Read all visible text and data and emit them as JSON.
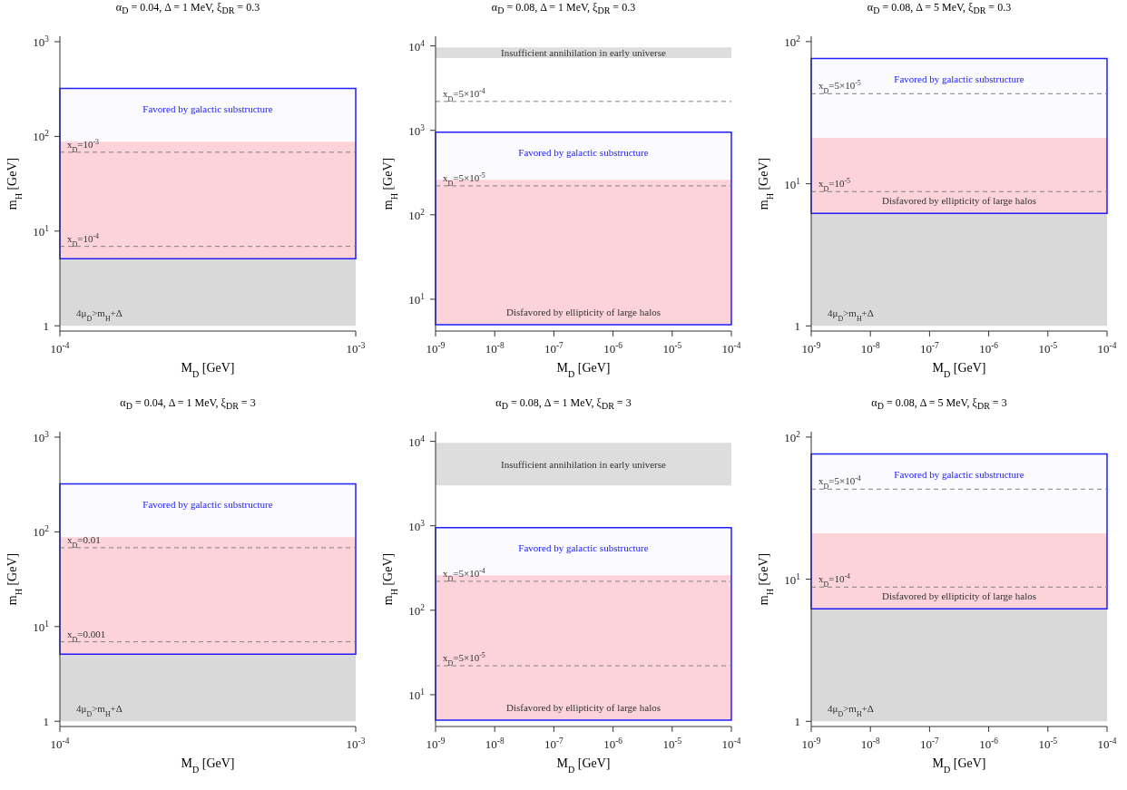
{
  "chart_data": [
    {
      "type": "area",
      "title": "α$_{D}$ = 0.04, Δ = 1 MeV, ξ$_{DR}$ = 0.3",
      "xlabel": "M$_{D}$   [GeV]",
      "ylabel": "m$_{H}$ [GeV]",
      "log": "xy",
      "xlim": [
        0.0001,
        0.001
      ],
      "ylim": [
        0.88,
        1140
      ],
      "xticks": [
        {
          "value": 0.0001,
          "label": "10$^{-4}$"
        },
        {
          "value": 0.001,
          "label": "10$^{-3}$"
        }
      ],
      "yticks": [
        {
          "value": 1,
          "label": "1"
        },
        {
          "value": 10,
          "label": "10$^{1}$"
        },
        {
          "value": 100,
          "label": "10$^{2}$"
        },
        {
          "value": 1000,
          "label": "10$^{3}$"
        }
      ],
      "bands": [
        {
          "axis": "y",
          "from": 1,
          "to": 5.1,
          "label": "4μ$_{D}$>m$_{H}$+Δ",
          "color": "#d9d9d9"
        },
        {
          "axis": "y",
          "from": 5.1,
          "to": 88,
          "color": "#ffd7d9"
        },
        {
          "axis": "y",
          "from": 5.1,
          "to": 320,
          "label": "Favored by galactic substructure",
          "color": "#2020ff"
        }
      ],
      "ref_lines": [
        {
          "axis": "y",
          "value": 68,
          "color": "#808080",
          "line_style": "dashed"
        },
        {
          "axis": "y",
          "value": 6.9,
          "color": "#808080",
          "line_style": "dashed"
        }
      ],
      "annotations": [
        {
          "text": "x$_{D}$=10$^{-3}$",
          "y": 68
        },
        {
          "text": "x$_{D}$=10$^{-4}$",
          "y": 6.9
        }
      ]
    },
    {
      "type": "area",
      "title": "α$_{D}$ = 0.08, Δ = 1 MeV, ξ$_{DR}$ = 0.3",
      "xlabel": "M$_{D}$   [GeV]",
      "ylabel": "m$_{H}$ [GeV]",
      "log": "xy",
      "xlim": [
        1e-09,
        0.0001
      ],
      "ylim": [
        4.2,
        13000
      ],
      "xticks": [
        {
          "value": 1e-09,
          "label": "10$^{-9}$"
        },
        {
          "value": 1e-08,
          "label": "10$^{-8}$"
        },
        {
          "value": 1e-07,
          "label": "10$^{-7}$"
        },
        {
          "value": 1e-06,
          "label": "10$^{-6}$"
        },
        {
          "value": 1e-05,
          "label": "10$^{-5}$"
        },
        {
          "value": 0.0001,
          "label": "10$^{-4}$"
        }
      ],
      "yticks": [
        {
          "value": 10,
          "label": "10$^{1}$"
        },
        {
          "value": 100,
          "label": "10$^{2}$"
        },
        {
          "value": 1000,
          "label": "10$^{3}$"
        },
        {
          "value": 10000,
          "label": "10$^{4}$"
        }
      ],
      "bands": [
        {
          "axis": "y",
          "from": 5,
          "to": 260,
          "label": "Disfavored by ellipticity of large halos",
          "color": "#ffd7d9"
        },
        {
          "axis": "y",
          "from": 5,
          "to": 950,
          "label": "Favored by galactic substructure",
          "color": "#2020ff"
        },
        {
          "axis": "y",
          "from": 7200,
          "to": 9600,
          "label": "Insufficient annihilation in early universe",
          "color": "#dddddd"
        }
      ],
      "ref_lines": [
        {
          "axis": "y",
          "value": 2200,
          "color": "#808080",
          "line_style": "dashed"
        },
        {
          "axis": "y",
          "value": 220,
          "color": "#808080",
          "line_style": "dashed"
        }
      ],
      "annotations": [
        {
          "text": "x$_{D}$=5×10$^{-4}$",
          "y": 2200
        },
        {
          "text": "x$_{D}$=5×10$^{-5}$",
          "y": 220
        }
      ]
    },
    {
      "type": "area",
      "title": "α$_{D}$ = 0.08, Δ = 5 MeV, ξ$_{DR}$ = 0.3",
      "xlabel": "M$_{D}$   [GeV]",
      "ylabel": "m$_{H}$ [GeV]",
      "log": "xy",
      "xlim": [
        1e-09,
        0.0001
      ],
      "ylim": [
        0.92,
        109
      ],
      "xticks": [
        {
          "value": 1e-09,
          "label": "10$^{-9}$"
        },
        {
          "value": 1e-08,
          "label": "10$^{-8}$"
        },
        {
          "value": 1e-07,
          "label": "10$^{-7}$"
        },
        {
          "value": 1e-06,
          "label": "10$^{-6}$"
        },
        {
          "value": 1e-05,
          "label": "10$^{-5}$"
        },
        {
          "value": 0.0001,
          "label": "10$^{-4}$"
        }
      ],
      "yticks": [
        {
          "value": 1,
          "label": "1"
        },
        {
          "value": 10,
          "label": "10$^{1}$"
        },
        {
          "value": 100,
          "label": "10$^{2}$"
        }
      ],
      "bands": [
        {
          "axis": "y",
          "from": 1,
          "to": 6.2,
          "label": "4μ$_{D}$>m$_{H}$+Δ",
          "color": "#d9d9d9"
        },
        {
          "axis": "y",
          "from": 6.2,
          "to": 21,
          "label": "Disfavored by ellipticity of large halos",
          "color": "#ffd7d9"
        },
        {
          "axis": "y",
          "from": 6.2,
          "to": 76,
          "label": "Favored by galactic substructure",
          "color": "#2020ff"
        }
      ],
      "ref_lines": [
        {
          "axis": "y",
          "value": 43,
          "color": "#808080",
          "line_style": "dashed"
        },
        {
          "axis": "y",
          "value": 8.8,
          "color": "#808080",
          "line_style": "dashed"
        }
      ],
      "annotations": [
        {
          "text": "x$_{D}$=5×10$^{-5}$",
          "y": 43
        },
        {
          "text": "x$_{D}$=10$^{-5}$",
          "y": 8.8
        }
      ]
    },
    {
      "type": "area",
      "title": "α$_{D}$ = 0.04, Δ = 1 MeV, ξ$_{DR}$ = 3",
      "xlabel": "M$_{D}$   [GeV]",
      "ylabel": "m$_{H}$ [GeV]",
      "log": "xy",
      "xlim": [
        0.0001,
        0.001
      ],
      "ylim": [
        0.88,
        1140
      ],
      "xticks": [
        {
          "value": 0.0001,
          "label": "10$^{-4}$"
        },
        {
          "value": 0.001,
          "label": "10$^{-3}$"
        }
      ],
      "yticks": [
        {
          "value": 1,
          "label": "1"
        },
        {
          "value": 10,
          "label": "10$^{1}$"
        },
        {
          "value": 100,
          "label": "10$^{2}$"
        },
        {
          "value": 1000,
          "label": "10$^{3}$"
        }
      ],
      "bands": [
        {
          "axis": "y",
          "from": 1,
          "to": 5.1,
          "label": "4μ$_{D}$>m$_{H}$+Δ",
          "color": "#d9d9d9"
        },
        {
          "axis": "y",
          "from": 5.1,
          "to": 88,
          "color": "#ffd7d9"
        },
        {
          "axis": "y",
          "from": 5.1,
          "to": 320,
          "label": "Favored by galactic substructure",
          "color": "#2020ff"
        }
      ],
      "ref_lines": [
        {
          "axis": "y",
          "value": 68,
          "color": "#808080",
          "line_style": "dashed"
        },
        {
          "axis": "y",
          "value": 6.9,
          "color": "#808080",
          "line_style": "dashed"
        }
      ],
      "annotations": [
        {
          "text": "x$_{D}$=0.01",
          "y": 68
        },
        {
          "text": "x$_{D}$=0.001",
          "y": 6.9
        }
      ]
    },
    {
      "type": "area",
      "title": "α$_{D}$ = 0.08, Δ = 1 MeV, ξ$_{DR}$ = 3",
      "xlabel": "M$_{D}$   [GeV]",
      "ylabel": "m$_{H}$ [GeV]",
      "log": "xy",
      "xlim": [
        1e-09,
        0.0001
      ],
      "ylim": [
        4.2,
        13000
      ],
      "xticks": [
        {
          "value": 1e-09,
          "label": "10$^{-9}$"
        },
        {
          "value": 1e-08,
          "label": "10$^{-8}$"
        },
        {
          "value": 1e-07,
          "label": "10$^{-7}$"
        },
        {
          "value": 1e-06,
          "label": "10$^{-6}$"
        },
        {
          "value": 1e-05,
          "label": "10$^{-5}$"
        },
        {
          "value": 0.0001,
          "label": "10$^{-4}$"
        }
      ],
      "yticks": [
        {
          "value": 10,
          "label": "10$^{1}$"
        },
        {
          "value": 100,
          "label": "10$^{2}$"
        },
        {
          "value": 1000,
          "label": "10$^{3}$"
        },
        {
          "value": 10000,
          "label": "10$^{4}$"
        }
      ],
      "bands": [
        {
          "axis": "y",
          "from": 5,
          "to": 260,
          "label": "Disfavored by ellipticity of large halos",
          "color": "#ffd7d9"
        },
        {
          "axis": "y",
          "from": 5,
          "to": 950,
          "label": "Favored by galactic substructure",
          "color": "#2020ff"
        },
        {
          "axis": "y",
          "from": 3000,
          "to": 9600,
          "label": "Insufficient annihilation in early universe",
          "color": "#dddddd"
        }
      ],
      "ref_lines": [
        {
          "axis": "y",
          "value": 220,
          "color": "#808080",
          "line_style": "dashed"
        },
        {
          "axis": "y",
          "value": 22,
          "color": "#808080",
          "line_style": "dashed"
        }
      ],
      "annotations": [
        {
          "text": "x$_{D}$=5×10$^{-4}$",
          "y": 220
        },
        {
          "text": "x$_{D}$=5×10$^{-5}$",
          "y": 22
        }
      ]
    },
    {
      "type": "area",
      "title": "α$_{D}$ = 0.08, Δ = 5 MeV, ξ$_{DR}$ = 3",
      "xlabel": "M$_{D}$   [GeV]",
      "ylabel": "m$_{H}$ [GeV]",
      "log": "xy",
      "xlim": [
        1e-09,
        0.0001
      ],
      "ylim": [
        0.92,
        109
      ],
      "xticks": [
        {
          "value": 1e-09,
          "label": "10$^{-9}$"
        },
        {
          "value": 1e-08,
          "label": "10$^{-8}$"
        },
        {
          "value": 1e-07,
          "label": "10$^{-7}$"
        },
        {
          "value": 1e-06,
          "label": "10$^{-6}$"
        },
        {
          "value": 1e-05,
          "label": "10$^{-5}$"
        },
        {
          "value": 0.0001,
          "label": "10$^{-4}$"
        }
      ],
      "yticks": [
        {
          "value": 1,
          "label": "1"
        },
        {
          "value": 10,
          "label": "10$^{1}$"
        },
        {
          "value": 100,
          "label": "10$^{2}$"
        }
      ],
      "bands": [
        {
          "axis": "y",
          "from": 1,
          "to": 6.2,
          "label": "4μ$_{D}$>m$_{H}$+Δ",
          "color": "#d9d9d9"
        },
        {
          "axis": "y",
          "from": 6.2,
          "to": 21,
          "label": "Disfavored by ellipticity of large halos",
          "color": "#ffd7d9"
        },
        {
          "axis": "y",
          "from": 6.2,
          "to": 76,
          "label": "Favored by galactic substructure",
          "color": "#2020ff"
        }
      ],
      "ref_lines": [
        {
          "axis": "y",
          "value": 43,
          "color": "#808080",
          "line_style": "dashed"
        },
        {
          "axis": "y",
          "value": 8.8,
          "color": "#808080",
          "line_style": "dashed"
        }
      ],
      "annotations": [
        {
          "text": "x$_{D}$=5×10$^{-4}$",
          "y": 43
        },
        {
          "text": "x$_{D}$=10$^{-4}$",
          "y": 8.8
        }
      ]
    }
  ]
}
